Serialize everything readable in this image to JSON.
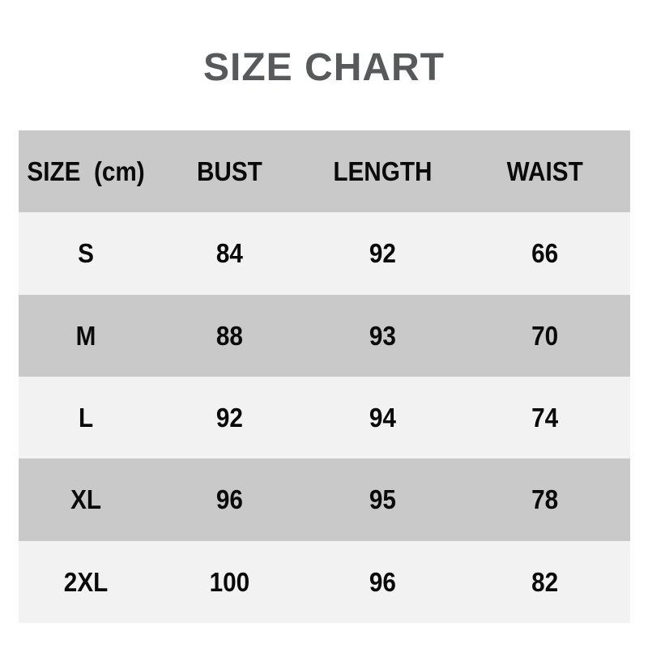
{
  "title": "SIZE CHART",
  "colors": {
    "title_text": "#58595b",
    "row_shade_dark": "#c9c9c9",
    "row_shade_light": "#f2f2f2",
    "table_text": "#0a0a0a",
    "page_background": "#ffffff"
  },
  "table": {
    "unit": "cm",
    "header": {
      "cells": [
        "SIZE  (cm)",
        "BUST",
        "LENGTH",
        "WAIST"
      ]
    },
    "rows": [
      {
        "cells": [
          "S",
          "84",
          "92",
          "66"
        ]
      },
      {
        "cells": [
          "M",
          "88",
          "93",
          "70"
        ]
      },
      {
        "cells": [
          "L",
          "92",
          "94",
          "74"
        ]
      },
      {
        "cells": [
          "XL",
          "96",
          "95",
          "78"
        ]
      },
      {
        "cells": [
          "2XL",
          "100",
          "96",
          "82"
        ]
      }
    ]
  },
  "chart_data": {
    "type": "table",
    "title": "SIZE CHART",
    "unit": "cm",
    "columns": [
      "SIZE (cm)",
      "BUST",
      "LENGTH",
      "WAIST"
    ],
    "rows": [
      [
        "S",
        84,
        92,
        66
      ],
      [
        "M",
        88,
        93,
        70
      ],
      [
        "L",
        92,
        94,
        74
      ],
      [
        "XL",
        96,
        95,
        78
      ],
      [
        "2XL",
        100,
        96,
        82
      ]
    ],
    "layout": {
      "grid": false,
      "alternating_row_shading": true,
      "header_position": "top"
    }
  }
}
